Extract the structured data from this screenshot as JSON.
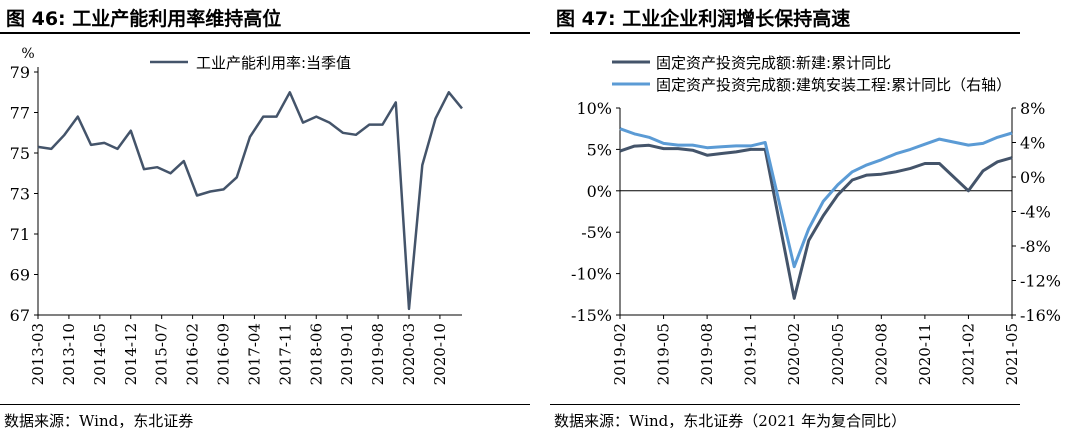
{
  "panels": [
    {
      "title": "图 46: 工业产能利用率维持高位",
      "source": "数据来源：Wind，东北证券"
    },
    {
      "title": "图 47: 工业企业利润增长保持高速",
      "source": "数据来源：Wind，东北证券（2021 年为复合同比）"
    }
  ],
  "chart_data": [
    {
      "type": "line",
      "title": "图 46: 工业产能利用率维持高位",
      "ylabel": "%",
      "ylim": [
        67,
        79
      ],
      "yticks": [
        67,
        69,
        71,
        73,
        75,
        77,
        79
      ],
      "x_tick_labels": [
        "2013-03",
        "2013-10",
        "2014-05",
        "2014-12",
        "2015-07",
        "2016-02",
        "2016-09",
        "2017-04",
        "2017-11",
        "2018-06",
        "2019-01",
        "2019-08",
        "2020-03",
        "2020-10"
      ],
      "legend_position": "top-center",
      "series": [
        {
          "name": "工业产能利用率:当季值",
          "color": "#44546a",
          "x": [
            "2013-03",
            "2013-06",
            "2013-09",
            "2013-12",
            "2014-03",
            "2014-06",
            "2014-09",
            "2014-12",
            "2015-03",
            "2015-06",
            "2015-09",
            "2015-12",
            "2016-03",
            "2016-06",
            "2016-09",
            "2016-12",
            "2017-03",
            "2017-06",
            "2017-09",
            "2017-12",
            "2018-03",
            "2018-06",
            "2018-09",
            "2018-12",
            "2019-03",
            "2019-06",
            "2019-09",
            "2019-12",
            "2020-03",
            "2020-06",
            "2020-09",
            "2020-12",
            "2021-03"
          ],
          "values": [
            75.3,
            75.2,
            75.9,
            76.8,
            75.4,
            75.5,
            75.2,
            76.1,
            74.2,
            74.3,
            74.0,
            74.6,
            72.9,
            73.1,
            73.2,
            73.8,
            75.8,
            76.8,
            76.8,
            78.0,
            76.5,
            76.8,
            76.5,
            76.0,
            75.9,
            76.4,
            76.4,
            77.5,
            67.3,
            74.4,
            76.7,
            78.0,
            77.2
          ]
        }
      ]
    },
    {
      "type": "line",
      "title": "图 47: 工业企业利润增长保持高速",
      "ylim_left": [
        -15,
        10
      ],
      "yticks_left": [
        "-15%",
        "-10%",
        "-5%",
        "0%",
        "5%",
        "10%"
      ],
      "ylim_right": [
        -16,
        8
      ],
      "yticks_right": [
        "-16%",
        "-12%",
        "-8%",
        "-4%",
        "0%",
        "4%",
        "8%"
      ],
      "x_tick_labels": [
        "2019-02",
        "2019-05",
        "2019-08",
        "2019-11",
        "2020-02",
        "2020-05",
        "2020-08",
        "2020-11",
        "2021-02",
        "2021-05"
      ],
      "legend_position": "top-left",
      "series": [
        {
          "name": "固定资产投资完成额:新建:累计同比",
          "axis": "left",
          "color": "#44546a",
          "x": [
            "2019-02",
            "2019-03",
            "2019-04",
            "2019-05",
            "2019-06",
            "2019-07",
            "2019-08",
            "2019-09",
            "2019-10",
            "2019-11",
            "2019-12",
            "2020-02",
            "2020-03",
            "2020-04",
            "2020-05",
            "2020-06",
            "2020-07",
            "2020-08",
            "2020-09",
            "2020-10",
            "2020-11",
            "2020-12",
            "2021-02",
            "2021-03",
            "2021-04",
            "2021-05"
          ],
          "values": [
            4.8,
            5.4,
            5.5,
            5.1,
            5.1,
            4.9,
            4.3,
            4.5,
            4.7,
            5.0,
            5.0,
            -13.0,
            -6.0,
            -3.0,
            -0.5,
            1.3,
            1.9,
            2.0,
            2.3,
            2.7,
            3.3,
            3.3,
            0.0,
            2.4,
            3.5,
            4.0
          ]
        },
        {
          "name": "固定资产投资完成额:建筑安装工程:累计同比（右轴）",
          "axis": "right",
          "color": "#5b9bd5",
          "x": [
            "2019-02",
            "2019-03",
            "2019-04",
            "2019-05",
            "2019-06",
            "2019-07",
            "2019-08",
            "2019-09",
            "2019-10",
            "2019-11",
            "2019-12",
            "2020-02",
            "2020-03",
            "2020-04",
            "2020-05",
            "2020-06",
            "2020-07",
            "2020-08",
            "2020-09",
            "2020-10",
            "2020-11",
            "2020-12",
            "2021-02",
            "2021-03",
            "2021-04",
            "2021-05"
          ],
          "values": [
            5.6,
            5.0,
            4.6,
            3.9,
            3.7,
            3.7,
            3.4,
            3.5,
            3.6,
            3.6,
            4.0,
            -10.4,
            -6.0,
            -2.8,
            -0.9,
            0.6,
            1.4,
            2.0,
            2.7,
            3.2,
            3.8,
            4.4,
            3.7,
            3.9,
            4.6,
            5.1
          ]
        }
      ]
    }
  ]
}
